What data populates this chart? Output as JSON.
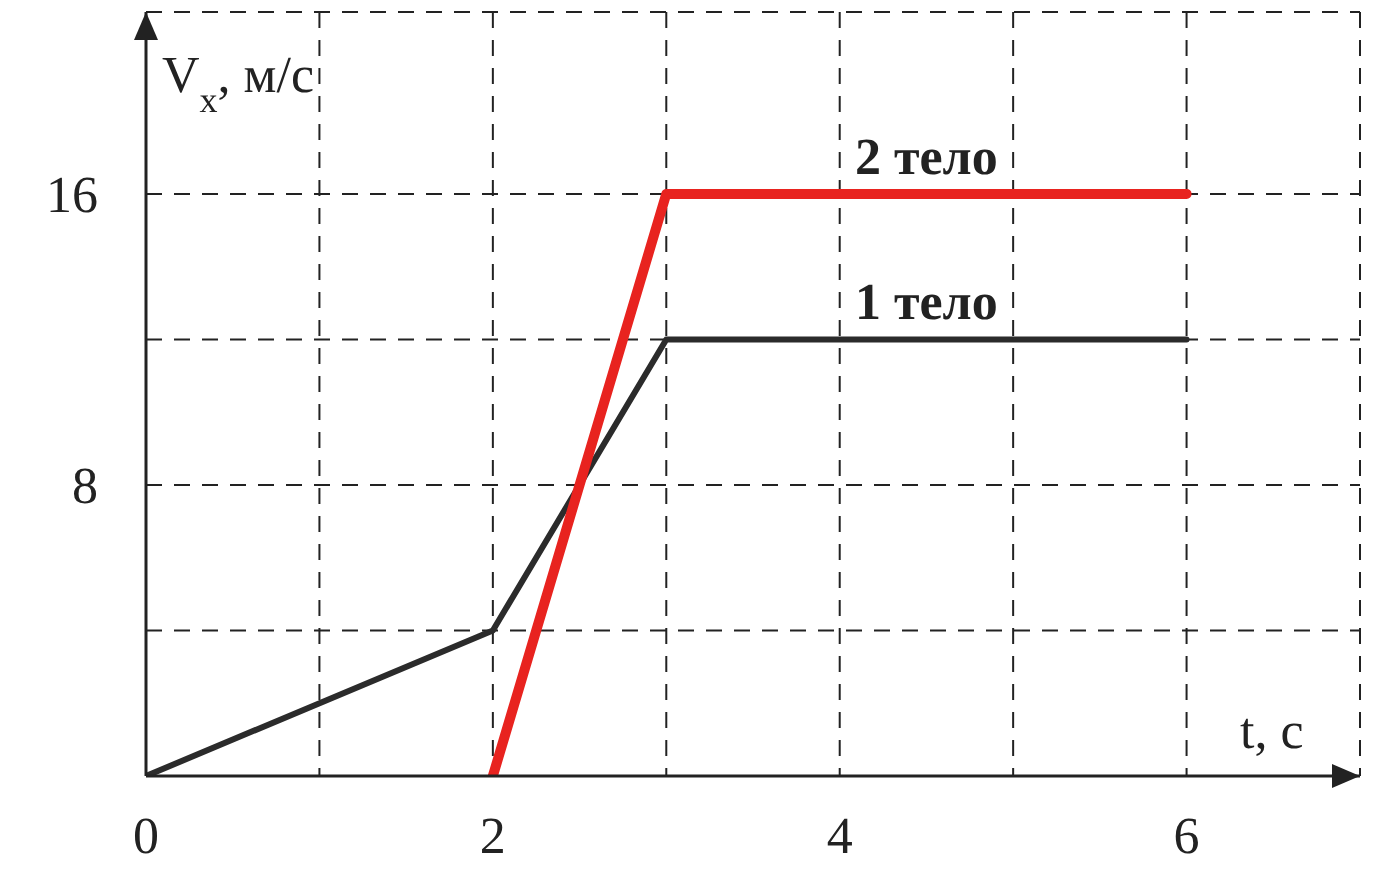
{
  "chart_data": {
    "type": "line",
    "xlabel": "t, с",
    "ylabel": "V$_{x}$, м/с",
    "xlim": [
      0,
      7
    ],
    "ylim": [
      0,
      21
    ],
    "xticks": [
      0,
      {
        "value": 1,
        "label": null
      },
      2,
      {
        "value": 3,
        "label": null
      },
      4,
      {
        "value": 5,
        "label": null
      },
      6
    ],
    "yticks": [
      {
        "value": 4,
        "label": null
      },
      8,
      {
        "value": 12,
        "label": null
      },
      16
    ],
    "grid": true,
    "marker": "none",
    "line_style": "solid",
    "series": [
      {
        "name": "1 тело",
        "color": "#2b2b2b",
        "x": [
          0,
          2,
          3,
          6
        ],
        "values": [
          0,
          4,
          12,
          12
        ]
      },
      {
        "name": "2 тело",
        "color": "#e8231f",
        "x": [
          2,
          3,
          6
        ],
        "values": [
          0,
          16,
          16
        ]
      }
    ]
  }
}
